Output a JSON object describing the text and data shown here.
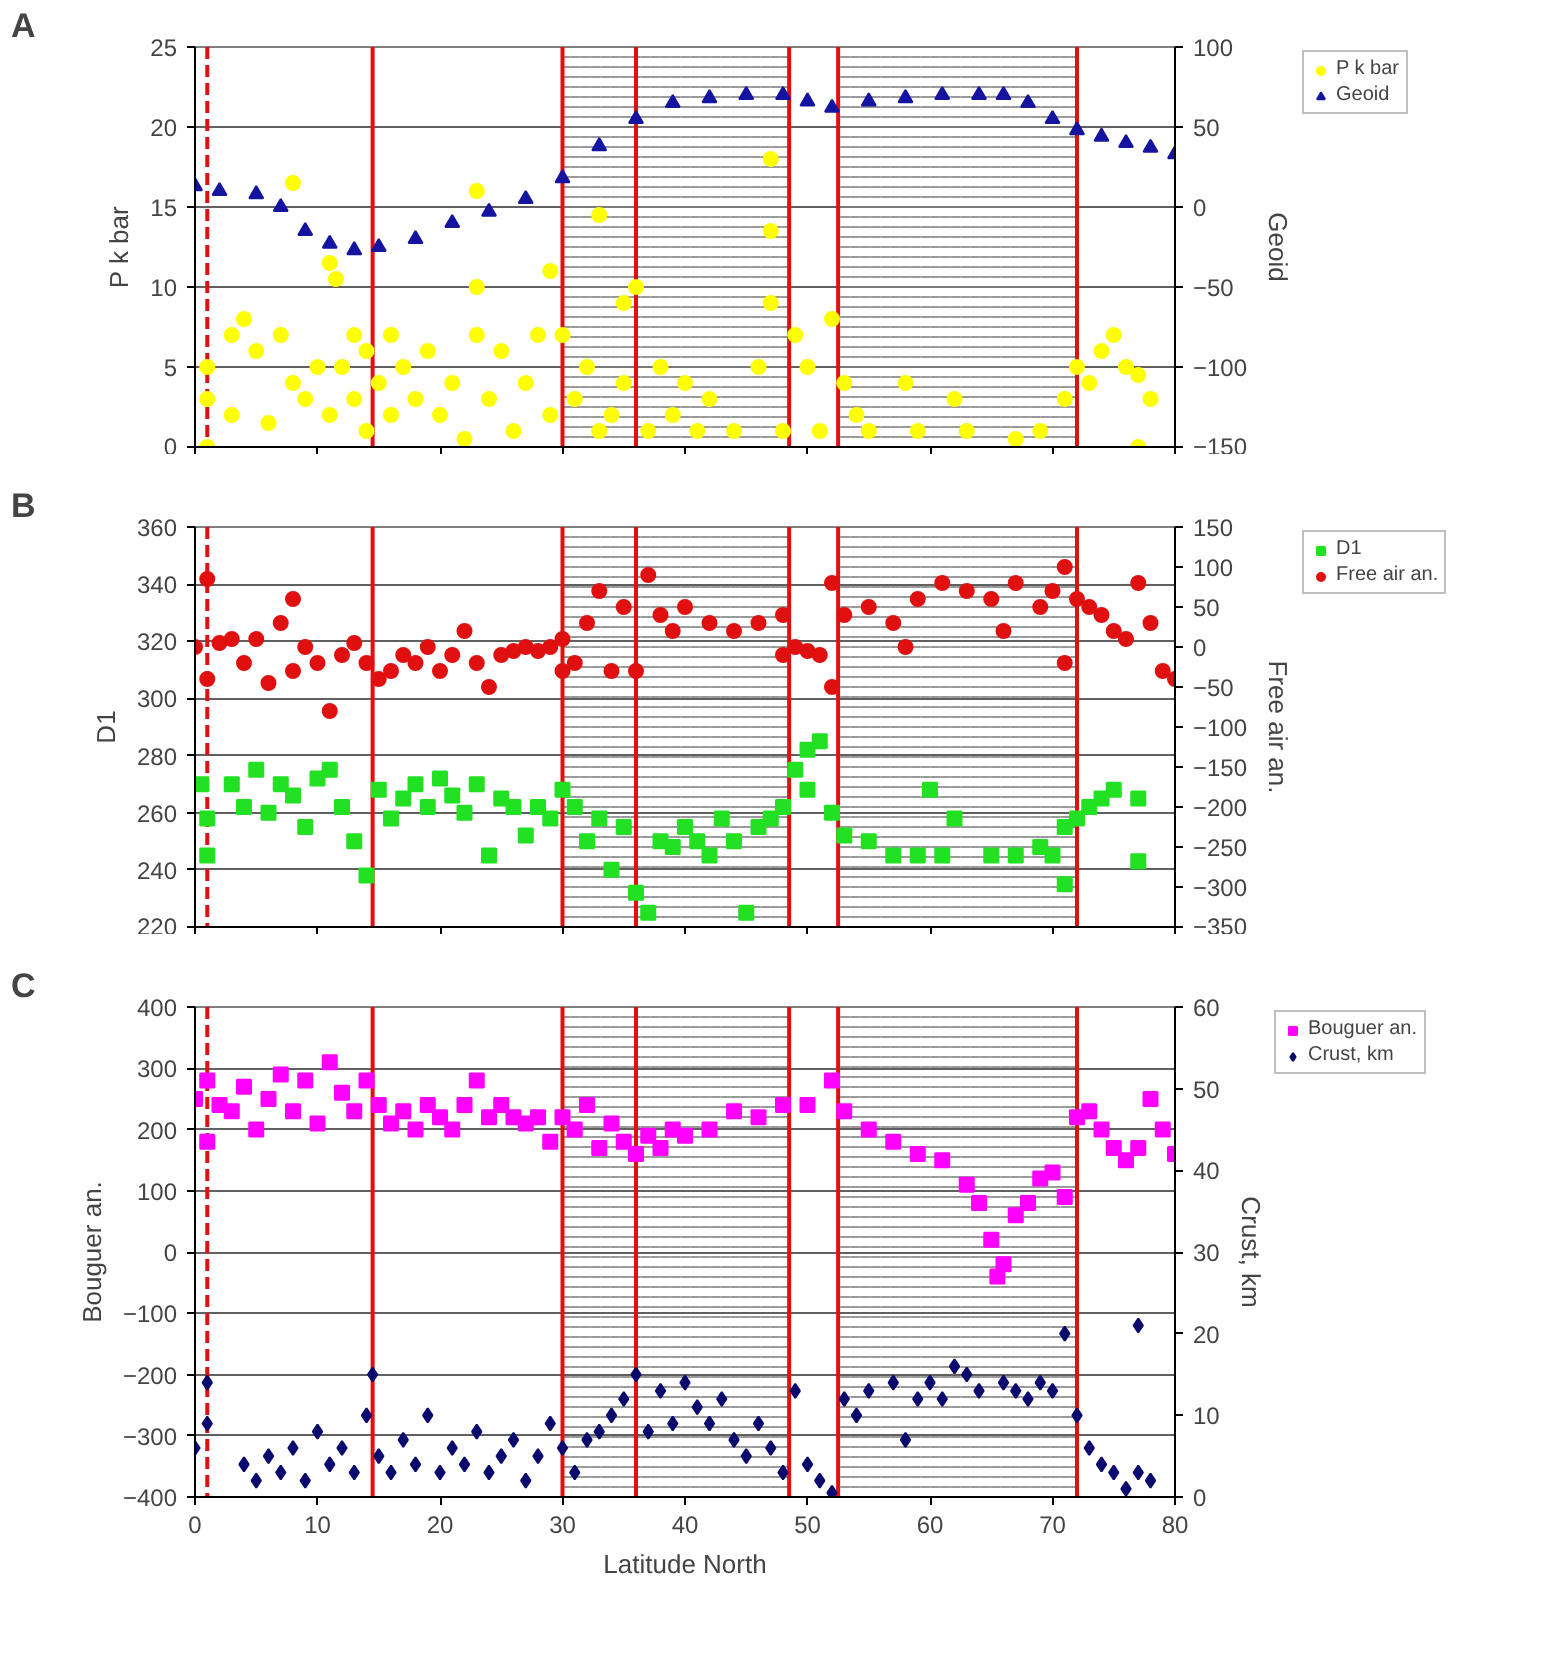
{
  "chart_data": [
    {
      "type": "scatter",
      "annotations": [
        "A"
      ],
      "ylabel": "P k bar",
      "y2label": "Geoid",
      "xlim": [
        0,
        80
      ],
      "xticks": [
        0,
        10,
        20,
        30,
        40,
        50,
        60,
        70,
        80
      ],
      "ylim": [
        0,
        25
      ],
      "yticks": [
        0,
        5,
        10,
        15,
        20,
        25
      ],
      "y2lim": [
        -150,
        100
      ],
      "y2ticks": [
        -150,
        -100,
        -50,
        0,
        50,
        100
      ],
      "tick_labels": "y",
      "grid": "y",
      "legend": "right",
      "ref_lines": [
        {
          "axis": "x",
          "value": 1,
          "color": "#e01010",
          "line_style": "dashed"
        },
        {
          "axis": "x",
          "value": 14.5,
          "color": "#e01010",
          "line_style": "solid"
        },
        {
          "axis": "x",
          "value": 30,
          "color": "#e01010",
          "line_style": "solid"
        },
        {
          "axis": "x",
          "value": 36,
          "color": "#e01010",
          "line_style": "solid"
        },
        {
          "axis": "x",
          "value": 48.5,
          "color": "#e01010",
          "line_style": "solid"
        },
        {
          "axis": "x",
          "value": 52.5,
          "color": "#e01010",
          "line_style": "solid"
        },
        {
          "axis": "x",
          "value": 72,
          "color": "#e01010",
          "line_style": "solid"
        }
      ],
      "bands": [
        {
          "axis": "x",
          "from": 30,
          "to": 48.5,
          "color": "#808080"
        },
        {
          "axis": "x",
          "from": 52.5,
          "to": 72,
          "color": "#808080"
        }
      ],
      "series": [
        {
          "name": "P k bar",
          "color": "#ffff00",
          "marker": "circle",
          "x": [
            1,
            1,
            1,
            3,
            3,
            4,
            5,
            6,
            7,
            8,
            8,
            9,
            10,
            11,
            11,
            11.5,
            12,
            13,
            13,
            14,
            14,
            15,
            16,
            16,
            17,
            18,
            19,
            20,
            21,
            22,
            23,
            23,
            23,
            24,
            25,
            26,
            27,
            28,
            29,
            29,
            30,
            31,
            32,
            33,
            33,
            34,
            35,
            35,
            36,
            37,
            38,
            39,
            40,
            41,
            42,
            44,
            46,
            47,
            47,
            47,
            48,
            49,
            50,
            51,
            52,
            53,
            54,
            55,
            58,
            59,
            62,
            63,
            67,
            69,
            71,
            72,
            73,
            74,
            75,
            76,
            77,
            77,
            78
          ],
          "values": [
            3,
            0,
            5,
            7,
            2,
            8,
            6,
            1.5,
            7,
            4,
            16.5,
            3,
            5,
            2,
            11.5,
            10.5,
            5,
            3,
            7,
            1,
            6,
            4,
            2,
            7,
            5,
            3,
            6,
            2,
            4,
            0.5,
            7,
            16,
            10,
            3,
            6,
            1,
            4,
            7,
            11,
            2,
            7,
            3,
            5,
            14.5,
            1,
            2,
            9,
            4,
            10,
            1,
            5,
            2,
            4,
            1,
            3,
            1,
            5,
            18,
            13.5,
            9,
            1,
            7,
            5,
            1,
            8,
            4,
            2,
            1,
            4,
            1,
            3,
            1,
            0.5,
            1,
            3,
            5,
            4,
            6,
            7,
            5,
            4.5,
            0,
            3
          ]
        },
        {
          "name": "Geoid",
          "color": "#1414a0",
          "marker": "triangle",
          "axis": "y2",
          "x": [
            0,
            2,
            5,
            7,
            9,
            11,
            13,
            15,
            18,
            21,
            24,
            27,
            30,
            33,
            36,
            39,
            42,
            45,
            48,
            50,
            52,
            55,
            58,
            61,
            64,
            66,
            68,
            70,
            72,
            74,
            76,
            78,
            80
          ],
          "values": [
            13,
            10,
            8,
            0,
            -15,
            -23,
            -27,
            -25,
            -20,
            -10,
            -3,
            5,
            18,
            38,
            55,
            65,
            68,
            70,
            70,
            66,
            62,
            66,
            68,
            70,
            70,
            70,
            65,
            55,
            48,
            44,
            40,
            37,
            33
          ]
        }
      ]
    },
    {
      "type": "scatter",
      "annotations": [
        "B"
      ],
      "ylabel": "D1",
      "y2label": "Free air an.",
      "xlim": [
        0,
        80
      ],
      "xticks": [
        0,
        10,
        20,
        30,
        40,
        50,
        60,
        70,
        80
      ],
      "ylim": [
        220,
        360
      ],
      "yticks": [
        220,
        240,
        260,
        280,
        300,
        320,
        340,
        360
      ],
      "y2lim": [
        -350,
        150
      ],
      "y2ticks": [
        -350,
        -300,
        -250,
        -200,
        -150,
        -100,
        -50,
        0,
        50,
        100,
        150
      ],
      "tick_labels": "y",
      "grid": "y",
      "legend": "right",
      "ref_lines": [
        {
          "axis": "x",
          "value": 1,
          "color": "#e01010",
          "line_style": "dashed"
        },
        {
          "axis": "x",
          "value": 14.5,
          "color": "#e01010",
          "line_style": "solid"
        },
        {
          "axis": "x",
          "value": 30,
          "color": "#e01010",
          "line_style": "solid"
        },
        {
          "axis": "x",
          "value": 36,
          "color": "#e01010",
          "line_style": "solid"
        },
        {
          "axis": "x",
          "value": 48.5,
          "color": "#e01010",
          "line_style": "solid"
        },
        {
          "axis": "x",
          "value": 52.5,
          "color": "#e01010",
          "line_style": "solid"
        },
        {
          "axis": "x",
          "value": 72,
          "color": "#e01010",
          "line_style": "solid"
        }
      ],
      "bands": [
        {
          "axis": "x",
          "from": 30,
          "to": 48.5,
          "color": "#808080"
        },
        {
          "axis": "x",
          "from": 52.5,
          "to": 72,
          "color": "#808080"
        }
      ],
      "series": [
        {
          "name": "D1",
          "color": "#22e022",
          "marker": "square",
          "x": [
            0.5,
            1,
            1,
            3,
            4,
            5,
            6,
            7,
            8,
            9,
            10,
            11,
            12,
            13,
            14,
            15,
            16,
            17,
            18,
            19,
            20,
            21,
            22,
            23,
            24,
            25,
            26,
            27,
            28,
            29,
            30,
            31,
            32,
            33,
            34,
            35,
            36,
            37,
            38,
            39,
            40,
            41,
            42,
            43,
            44,
            45,
            46,
            47,
            48,
            49,
            50,
            50,
            51,
            52,
            53,
            55,
            57,
            59,
            60,
            61,
            62,
            65,
            67,
            69,
            70,
            71,
            71,
            72,
            73,
            74,
            75,
            77,
            77
          ],
          "values": [
            270,
            258,
            245,
            270,
            262,
            275,
            260,
            270,
            266,
            255,
            272,
            275,
            262,
            250,
            238,
            268,
            258,
            265,
            270,
            262,
            272,
            266,
            260,
            270,
            245,
            265,
            262,
            252,
            262,
            258,
            268,
            262,
            250,
            258,
            240,
            255,
            232,
            225,
            250,
            248,
            255,
            250,
            245,
            258,
            250,
            225,
            255,
            258,
            262,
            275,
            282,
            268,
            285,
            260,
            252,
            250,
            245,
            245,
            268,
            245,
            258,
            245,
            245,
            248,
            245,
            235,
            255,
            258,
            262,
            265,
            268,
            265,
            243
          ]
        },
        {
          "name": "Free air an.",
          "color": "#e01010",
          "marker": "circle",
          "axis": "y2",
          "x": [
            0,
            1,
            1,
            2,
            3,
            4,
            5,
            6,
            7,
            8,
            8,
            9,
            10,
            11,
            12,
            13,
            14,
            15,
            16,
            17,
            18,
            19,
            20,
            21,
            22,
            23,
            24,
            25,
            26,
            27,
            28,
            29,
            30,
            30,
            31,
            32,
            33,
            34,
            35,
            36,
            37,
            38,
            39,
            40,
            42,
            44,
            46,
            48,
            48,
            49,
            50,
            51,
            52,
            52,
            53,
            55,
            57,
            58,
            59,
            61,
            63,
            65,
            66,
            67,
            69,
            70,
            71,
            71,
            72,
            73,
            74,
            75,
            76,
            77,
            78,
            79,
            80
          ],
          "values": [
            0,
            85,
            -40,
            5,
            10,
            -20,
            10,
            -45,
            30,
            60,
            -30,
            0,
            -20,
            -80,
            -10,
            5,
            -20,
            -40,
            -30,
            -10,
            -20,
            0,
            -30,
            -10,
            20,
            -20,
            -50,
            -10,
            -5,
            0,
            -5,
            0,
            10,
            -30,
            -20,
            30,
            70,
            -30,
            50,
            -30,
            90,
            40,
            20,
            50,
            30,
            20,
            30,
            40,
            -10,
            0,
            -5,
            -10,
            80,
            -50,
            40,
            50,
            30,
            0,
            60,
            80,
            70,
            60,
            20,
            80,
            50,
            70,
            100,
            -20,
            60,
            50,
            40,
            20,
            10,
            80,
            30,
            -30,
            -40
          ]
        }
      ]
    },
    {
      "type": "scatter",
      "annotations": [
        "C"
      ],
      "xlabel": "Latitude North",
      "ylabel": "Bouguer an.",
      "y2label": "Crust, km",
      "xlim": [
        0,
        80
      ],
      "xticks": [
        0,
        10,
        20,
        30,
        40,
        50,
        60,
        70,
        80
      ],
      "ylim": [
        -400,
        400
      ],
      "yticks": [
        -400,
        -300,
        -200,
        -100,
        0,
        100,
        200,
        300,
        400
      ],
      "y2lim": [
        0,
        60
      ],
      "y2ticks": [
        0,
        10,
        20,
        30,
        40,
        50,
        60
      ],
      "grid": "y",
      "legend": "right",
      "ref_lines": [
        {
          "axis": "x",
          "value": 1,
          "color": "#e01010",
          "line_style": "dashed"
        },
        {
          "axis": "x",
          "value": 14.5,
          "color": "#e01010",
          "line_style": "solid"
        },
        {
          "axis": "x",
          "value": 30,
          "color": "#e01010",
          "line_style": "solid"
        },
        {
          "axis": "x",
          "value": 36,
          "color": "#e01010",
          "line_style": "solid"
        },
        {
          "axis": "x",
          "value": 48.5,
          "color": "#e01010",
          "line_style": "solid"
        },
        {
          "axis": "x",
          "value": 52.5,
          "color": "#e01010",
          "line_style": "solid"
        },
        {
          "axis": "x",
          "value": 72,
          "color": "#e01010",
          "line_style": "solid"
        }
      ],
      "bands": [
        {
          "axis": "x",
          "from": 30,
          "to": 48.5,
          "color": "#808080"
        },
        {
          "axis": "x",
          "from": 52.5,
          "to": 72,
          "color": "#808080"
        }
      ],
      "series": [
        {
          "name": "Bouguer an.",
          "color": "#ff00ff",
          "marker": "square",
          "x": [
            0,
            1,
            1,
            2,
            3,
            4,
            5,
            6,
            7,
            8,
            9,
            10,
            11,
            12,
            13,
            14,
            15,
            16,
            17,
            18,
            19,
            20,
            21,
            22,
            23,
            24,
            25,
            26,
            27,
            28,
            29,
            30,
            31,
            32,
            33,
            34,
            35,
            36,
            37,
            38,
            39,
            40,
            42,
            44,
            46,
            48,
            50,
            52,
            53,
            55,
            57,
            59,
            61,
            63,
            64,
            65,
            65.5,
            66,
            67,
            68,
            69,
            70,
            71,
            72,
            73,
            74,
            75,
            76,
            77,
            78,
            79,
            80
          ],
          "values": [
            250,
            280,
            180,
            240,
            230,
            270,
            200,
            250,
            290,
            230,
            280,
            210,
            310,
            260,
            230,
            280,
            240,
            210,
            230,
            200,
            240,
            220,
            200,
            240,
            280,
            220,
            240,
            220,
            210,
            220,
            180,
            220,
            200,
            240,
            170,
            210,
            180,
            160,
            190,
            170,
            200,
            190,
            200,
            230,
            220,
            240,
            240,
            280,
            230,
            200,
            180,
            160,
            150,
            110,
            80,
            20,
            -40,
            -20,
            60,
            80,
            120,
            130,
            90,
            220,
            230,
            200,
            170,
            150,
            170,
            250,
            200,
            160
          ]
        },
        {
          "name": "Crust, km",
          "color": "#0a0a6e",
          "marker": "diamond",
          "axis": "y2",
          "x": [
            0,
            1,
            1,
            4,
            5,
            6,
            7,
            8,
            9,
            10,
            11,
            12,
            13,
            14,
            14.5,
            15,
            16,
            17,
            18,
            19,
            20,
            21,
            22,
            23,
            24,
            25,
            26,
            27,
            28,
            29,
            30,
            31,
            32,
            33,
            34,
            35,
            36,
            37,
            38,
            39,
            40,
            41,
            42,
            43,
            44,
            45,
            46,
            47,
            48,
            49,
            50,
            51,
            52,
            53,
            54,
            55,
            57,
            58,
            59,
            60,
            61,
            62,
            63,
            64,
            66,
            67,
            68,
            69,
            70,
            71,
            72,
            73,
            74,
            75,
            76,
            77,
            77,
            78
          ],
          "values": [
            6,
            14,
            9,
            4,
            2,
            5,
            3,
            6,
            2,
            8,
            4,
            6,
            3,
            10,
            15,
            5,
            3,
            7,
            4,
            10,
            3,
            6,
            4,
            8,
            3,
            5,
            7,
            2,
            5,
            9,
            6,
            3,
            7,
            8,
            10,
            12,
            15,
            8,
            13,
            9,
            14,
            11,
            9,
            12,
            7,
            5,
            9,
            6,
            3,
            13,
            4,
            2,
            0.5,
            12,
            10,
            13,
            14,
            7,
            12,
            14,
            12,
            16,
            15,
            13,
            14,
            13,
            12,
            14,
            13,
            20,
            10,
            6,
            4,
            3,
            1,
            21,
            3,
            2
          ]
        }
      ]
    }
  ]
}
